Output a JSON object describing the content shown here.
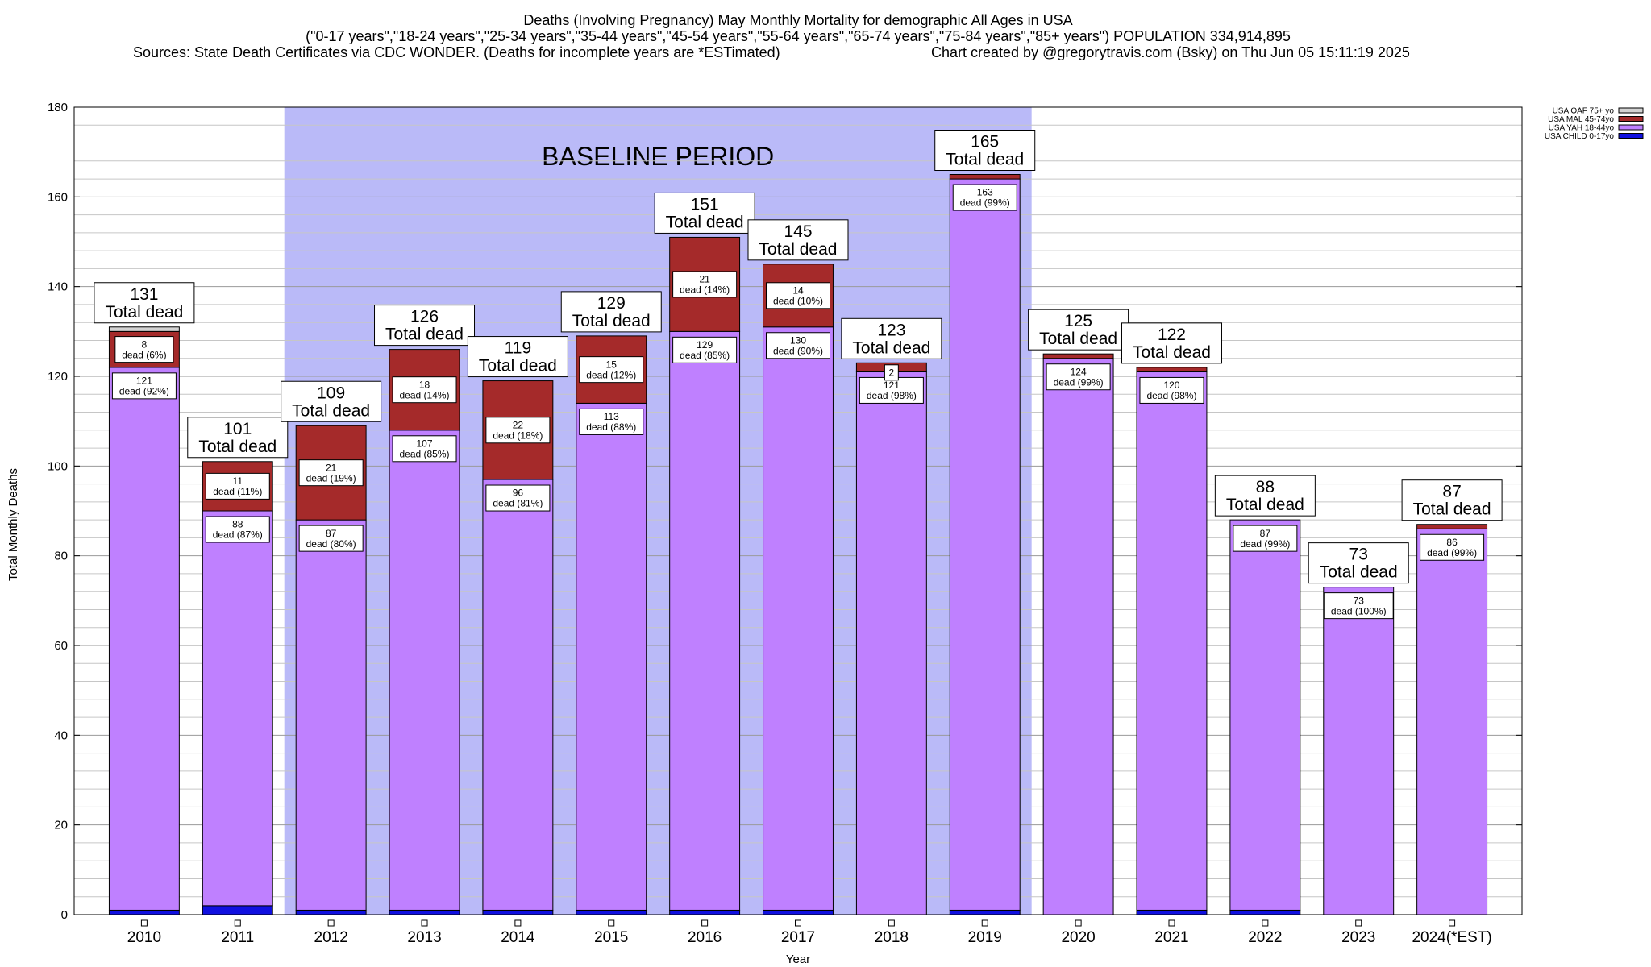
{
  "header": {
    "title_line1": "Deaths (Involving Pregnancy) May Monthly Mortality for demographic All Ages in USA",
    "title_line2": "(\"0-17 years\",\"18-24 years\",\"25-34 years\",\"35-44 years\",\"45-54 years\",\"55-64 years\",\"65-74 years\",\"75-84 years\",\"85+ years\") POPULATION 334,914,895",
    "sources": "Sources: State Death Certificates via CDC WONDER. (Deaths for incomplete years are *ESTimated)",
    "credit": "Chart created by @gregorytravis.com (Bsky) on Thu Jun 05 15:11:19 2025"
  },
  "chart_data": {
    "type": "bar",
    "stacked": true,
    "xlabel": "Year",
    "ylabel": "Total Monthly Deaths",
    "ylim": [
      0,
      180
    ],
    "yticks": [
      0,
      20,
      40,
      60,
      80,
      100,
      120,
      140,
      160,
      180
    ],
    "grid": true,
    "legend_placement": "top-right",
    "categories": [
      "2010",
      "2011",
      "2012",
      "2013",
      "2014",
      "2015",
      "2016",
      "2017",
      "2018",
      "2019",
      "2020",
      "2021",
      "2022",
      "2023",
      "2024(*EST)"
    ],
    "totals": [
      131,
      101,
      109,
      126,
      119,
      129,
      151,
      145,
      123,
      165,
      125,
      122,
      88,
      73,
      87
    ],
    "total_suffix": "Total dead",
    "segment_suffix": "dead",
    "series": [
      {
        "name": "USA CHILD 0-17yo",
        "color": "#1010e0",
        "values": [
          1,
          2,
          1,
          1,
          1,
          1,
          1,
          1,
          0,
          1,
          0,
          1,
          1,
          0,
          0
        ]
      },
      {
        "name": "USA YAH 18-44yo",
        "color": "#bf80ff",
        "values": [
          121,
          88,
          87,
          107,
          96,
          113,
          129,
          130,
          121,
          163,
          124,
          120,
          87,
          73,
          86
        ]
      },
      {
        "name": "USA MAL 45-74yo",
        "color": "#a52a2a",
        "values": [
          8,
          11,
          21,
          18,
          22,
          15,
          21,
          14,
          2,
          1,
          1,
          1,
          0,
          0,
          1
        ]
      },
      {
        "name": "USA OAF 75+ yo",
        "color": "#d3d3d3",
        "values": [
          1,
          0,
          0,
          0,
          0,
          0,
          0,
          0,
          0,
          0,
          0,
          0,
          0,
          0,
          0
        ]
      }
    ],
    "segment_labels": [
      {
        "yah": {
          "count": "121",
          "pct": "(92%)"
        },
        "mal": {
          "count": "8",
          "pct": "(6%)"
        }
      },
      {
        "yah": {
          "count": "88",
          "pct": "(87%)"
        },
        "mal": {
          "count": "11",
          "pct": "(11%)"
        }
      },
      {
        "yah": {
          "count": "87",
          "pct": "(80%)"
        },
        "mal": {
          "count": "21",
          "pct": "(19%)"
        }
      },
      {
        "yah": {
          "count": "107",
          "pct": "(85%)"
        },
        "mal": {
          "count": "18",
          "pct": "(14%)"
        }
      },
      {
        "yah": {
          "count": "96",
          "pct": "(81%)"
        },
        "mal": {
          "count": "22",
          "pct": "(18%)"
        }
      },
      {
        "yah": {
          "count": "113",
          "pct": "(88%)"
        },
        "mal": {
          "count": "15",
          "pct": "(12%)"
        }
      },
      {
        "yah": {
          "count": "129",
          "pct": "(85%)"
        },
        "mal": {
          "count": "21",
          "pct": "(14%)"
        }
      },
      {
        "yah": {
          "count": "130",
          "pct": "(90%)"
        },
        "mal": {
          "count": "14",
          "pct": "(10%)"
        }
      },
      {
        "yah": {
          "count": "121",
          "pct": "(98%)"
        },
        "mal": {
          "count": "2",
          "pct": ""
        }
      },
      {
        "yah": {
          "count": "163",
          "pct": "(99%)"
        }
      },
      {
        "yah": {
          "count": "124",
          "pct": "(99%)"
        }
      },
      {
        "yah": {
          "count": "120",
          "pct": "(98%)"
        }
      },
      {
        "yah": {
          "count": "87",
          "pct": "(99%)"
        }
      },
      {
        "yah": {
          "count": "73",
          "pct": "(100%)"
        }
      },
      {
        "yah": {
          "count": "86",
          "pct": "(99%)"
        }
      }
    ],
    "annotation": {
      "text": "BASELINE PERIOD",
      "start_category": "2012",
      "end_category": "2019",
      "color": "#babaf8"
    }
  }
}
